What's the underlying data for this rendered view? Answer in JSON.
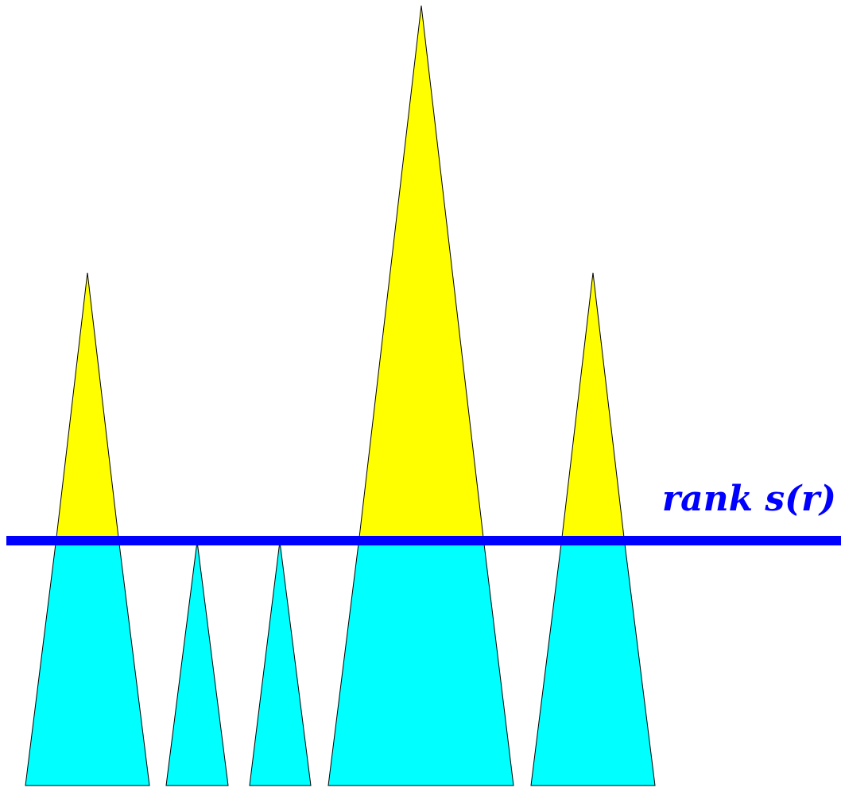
{
  "colors": {
    "background": "#ffffff",
    "upper_part": "#ffff00",
    "lower_part": "#00ffff",
    "rank_line": "#0000ff",
    "outline": "#000000"
  },
  "rank_line": {
    "label": "rank s(r)"
  },
  "trees": [
    {
      "id": "tree-1",
      "crosses_rank_line": true
    },
    {
      "id": "tree-2",
      "crosses_rank_line": false
    },
    {
      "id": "tree-3",
      "crosses_rank_line": false
    },
    {
      "id": "tree-4",
      "crosses_rank_line": true
    },
    {
      "id": "tree-5",
      "crosses_rank_line": true
    }
  ]
}
